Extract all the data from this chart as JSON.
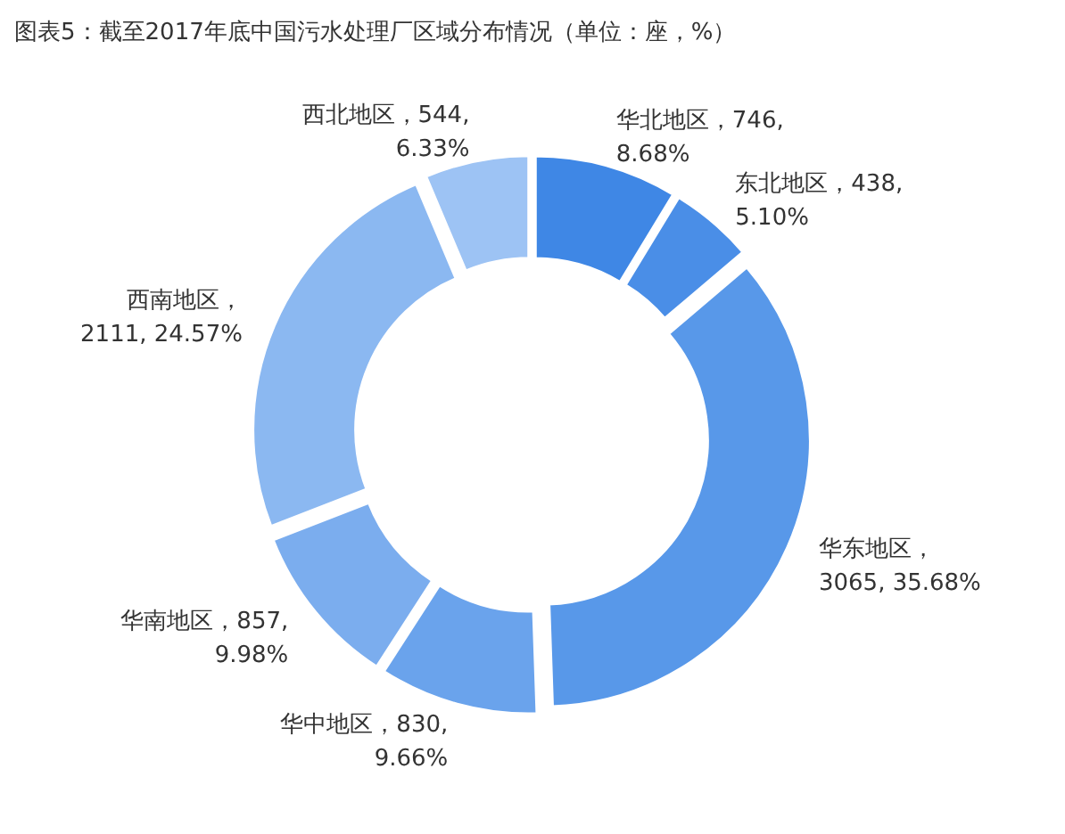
{
  "chart_data": {
    "type": "donut",
    "title": "图表5：截至2017年底中国污水处理厂区域分布情况（单位：座，%）",
    "categories": [
      "华北地区",
      "东北地区",
      "华东地区",
      "华中地区",
      "华南地区",
      "西南地区",
      "西北地区"
    ],
    "values": [
      746,
      438,
      3065,
      830,
      857,
      2111,
      544
    ],
    "value_labels": [
      "，746,\n8.68%",
      "，438,\n5.10%",
      "，\n3065, 35.68%",
      "，830,\n9.66%",
      "，857,\n9.98%",
      "，\n2111, 24.57%",
      "，544,\n6.33%"
    ],
    "colors": [
      "#3f87e5",
      "#4a8ee7",
      "#5898e9",
      "#6aa3ec",
      "#7badee",
      "#8bb8f1",
      "#9dc3f4"
    ]
  }
}
